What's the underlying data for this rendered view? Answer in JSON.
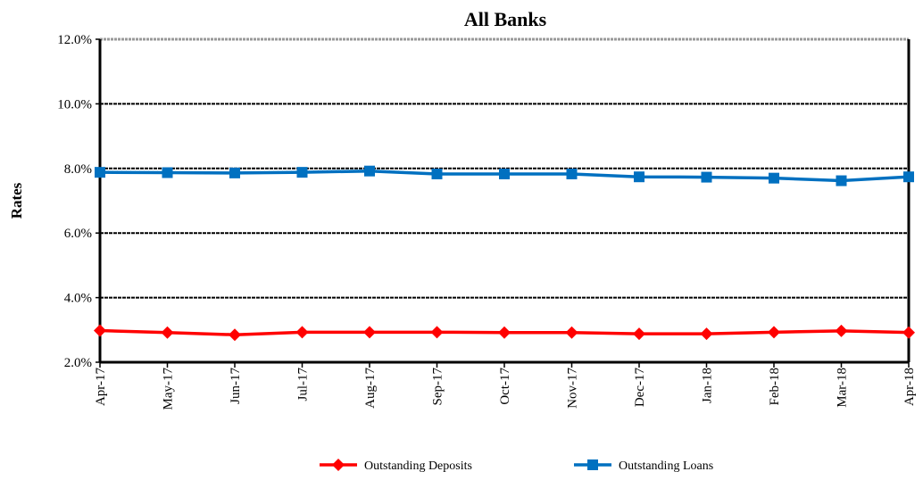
{
  "chart_data": {
    "type": "line",
    "title": "All Banks",
    "xlabel": "",
    "ylabel": "Rates",
    "categories": [
      "Apr-17",
      "May-17",
      "Jun-17",
      "Jul-17",
      "Aug-17",
      "Sep-17",
      "Oct-17",
      "Nov-17",
      "Dec-17",
      "Jan-18",
      "Feb-18",
      "Mar-18",
      "Apr-18"
    ],
    "yticks": [
      "2.0%",
      "4.0%",
      "6.0%",
      "8.0%",
      "10.0%",
      "12.0%"
    ],
    "ylim": [
      2.0,
      12.0
    ],
    "grid": true,
    "legend_position": "bottom",
    "series": [
      {
        "name": "Outstanding Deposits",
        "color": "#ff0000",
        "marker": "diamond",
        "values": [
          2.98,
          2.92,
          2.85,
          2.93,
          2.93,
          2.93,
          2.92,
          2.92,
          2.88,
          2.88,
          2.93,
          2.97,
          2.92
        ]
      },
      {
        "name": "Outstanding Loans",
        "color": "#0070c0",
        "marker": "square",
        "values": [
          7.88,
          7.87,
          7.86,
          7.88,
          7.92,
          7.83,
          7.83,
          7.83,
          7.74,
          7.73,
          7.7,
          7.62,
          7.74
        ]
      }
    ]
  }
}
